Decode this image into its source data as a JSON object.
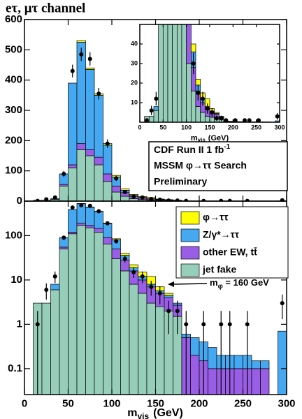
{
  "chart_data": {
    "type": "histogram",
    "title": "eτ, μτ channel",
    "x_label": {
      "main": "m",
      "sub": "vis",
      "unit": "(GeV)"
    },
    "xlim": [
      0,
      300
    ],
    "xticks": [
      0,
      50,
      100,
      150,
      200,
      250,
      300
    ],
    "bins": [
      0,
      10,
      20,
      30,
      40,
      50,
      60,
      70,
      80,
      90,
      100,
      110,
      120,
      130,
      140,
      150,
      160,
      170,
      180,
      190,
      200,
      210,
      220,
      230,
      240,
      250,
      260,
      270,
      280,
      290,
      300
    ],
    "series": [
      {
        "name": "φ→ττ",
        "color": "#ffff00",
        "values": [
          0,
          0,
          0,
          0,
          0,
          0,
          5,
          5,
          5,
          5,
          5,
          4,
          3,
          3,
          4,
          1.3,
          0.5,
          0,
          0,
          0,
          0,
          0,
          0,
          0,
          0,
          0,
          0,
          0,
          0,
          0
        ]
      },
      {
        "name": "Z/γ*→ττ",
        "color": "#45a8f0",
        "values": [
          0,
          0,
          0,
          2,
          35,
          270,
          335,
          265,
          205,
          95,
          30,
          8,
          3,
          2,
          1,
          0.7,
          0.5,
          0.3,
          0.1,
          0.3,
          0.25,
          0.2,
          0.1,
          0.1,
          0.1,
          0.1,
          0.05,
          0.05,
          0,
          0.7
        ]
      },
      {
        "name": "other EW, tt̄",
        "color": "#9a5ee6",
        "values": [
          0,
          0,
          0,
          0,
          5,
          10,
          20,
          20,
          25,
          25,
          20,
          12,
          8,
          5,
          4,
          2.5,
          2,
          1.2,
          0.5,
          0.2,
          0.15,
          0.1,
          0.1,
          0.1,
          0.1,
          0.1,
          0.1,
          0.1,
          0,
          0
        ]
      },
      {
        "name": "jet fake",
        "color": "#96ceb9",
        "values": [
          0,
          3,
          3,
          6,
          50,
          110,
          170,
          150,
          120,
          65,
          30,
          16,
          8,
          5,
          3,
          2.5,
          2,
          1.5,
          0,
          0,
          0,
          0,
          0,
          0,
          0,
          0,
          0,
          0,
          0,
          0
        ]
      }
    ],
    "points": {
      "x": [
        15,
        25,
        35,
        45,
        55,
        65,
        75,
        85,
        95,
        105,
        115,
        125,
        135,
        145,
        155,
        165,
        175,
        185,
        205,
        225,
        235,
        255,
        295
      ],
      "values": [
        1,
        6,
        12,
        90,
        430,
        485,
        470,
        355,
        190,
        75,
        30,
        15,
        12,
        7,
        5,
        2,
        2,
        1,
        1,
        1,
        1,
        1,
        3
      ],
      "errors": [
        1,
        2.4,
        3.5,
        9.5,
        21,
        22,
        22,
        19,
        14,
        8.7,
        5.5,
        3.9,
        3.5,
        2.6,
        2.2,
        1.4,
        1.4,
        1,
        1,
        1,
        1,
        1,
        1.7
      ]
    },
    "panels": [
      {
        "scale": "linear",
        "ylim": [
          0,
          600
        ],
        "yticks": [
          0,
          100,
          200,
          300,
          400,
          500,
          600
        ]
      },
      {
        "scale": "log",
        "ylim": [
          0.026,
          600
        ],
        "yticks": [
          0.1,
          1,
          10,
          100
        ]
      }
    ],
    "inset": {
      "xlim": [
        0,
        300
      ],
      "ylim": [
        0,
        50
      ],
      "xticks": [
        0,
        50,
        100,
        150,
        200,
        250,
        300
      ],
      "yticks": [
        10,
        20,
        30,
        40
      ],
      "x_label": {
        "main": "m",
        "sub": "vis",
        "unit": "(GeV)"
      }
    },
    "annotation": {
      "lines": [
        "CDF Run II  1 fb",
        "MSSM φ→ττ Search",
        "Preliminary"
      ],
      "sup": "-1"
    },
    "mass_label": {
      "main": "m",
      "sub": "φ",
      "rest": " = 160 GeV",
      "x": 160
    }
  }
}
